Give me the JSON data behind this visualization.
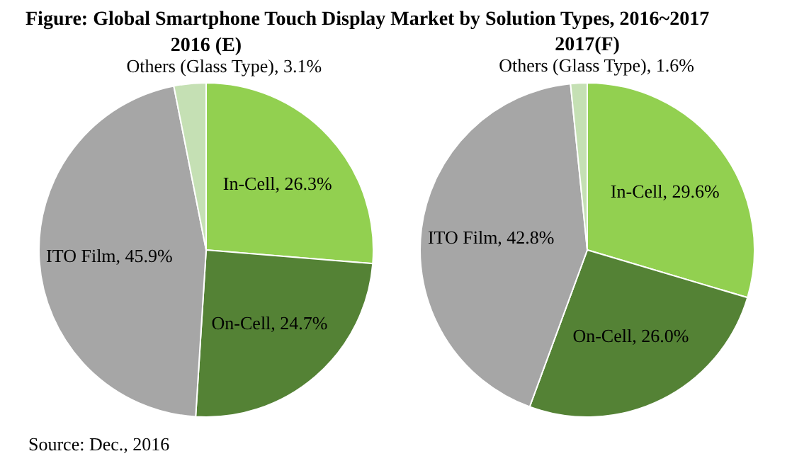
{
  "chart_data": [
    {
      "type": "pie",
      "title": "Figure: Global Smartphone Touch Display Market by Solution Types, 2016~2017",
      "subtitle": "2016 (E)",
      "categories": [
        "In-Cell",
        "On-Cell",
        "ITO Film",
        "Others (Glass Type)"
      ],
      "values": [
        26.3,
        24.7,
        45.9,
        3.1
      ],
      "colors": [
        "#92d050",
        "#548235",
        "#a6a6a6",
        "#c5e0b4"
      ],
      "value_labels": [
        "26.3%",
        "24.7%",
        "45.9%",
        "3.1%"
      ],
      "annotations": [
        "Source: Dec., 2016"
      ]
    },
    {
      "type": "pie",
      "subtitle": "2017(F)",
      "categories": [
        "In-Cell",
        "On-Cell",
        "ITO Film",
        "Others (Glass Type)"
      ],
      "values": [
        29.6,
        26.0,
        42.8,
        1.6
      ],
      "colors": [
        "#92d050",
        "#548235",
        "#a6a6a6",
        "#c5e0b4"
      ],
      "value_labels": [
        "29.6%",
        "26.0%",
        "42.8%",
        "1.6%"
      ]
    }
  ]
}
